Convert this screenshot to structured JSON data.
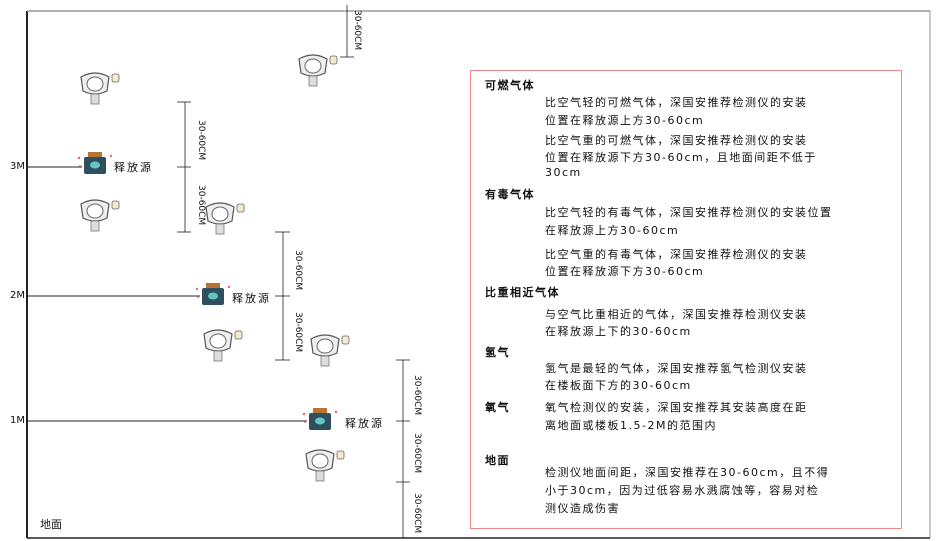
{
  "levels": {
    "m3": "3M",
    "m2": "2M",
    "m1": "1M",
    "ground": "地面"
  },
  "source_label": "释放源",
  "dimension_label": "30-60CM",
  "panel": {
    "combustible": {
      "title": "可燃气体",
      "lighter": [
        "比空气轻的可燃气体，深国安推荐检测仪的安装",
        "位置在释放源上方30-60cm"
      ],
      "heavier": [
        "比空气重的可燃气体，深国安推荐检测仪的安装",
        "位置在释放源下方30-60cm，且地面间距不低于",
        "30cm"
      ]
    },
    "toxic": {
      "title": "有毒气体",
      "lighter": [
        "比空气轻的有毒气体，深国安推荐检测仪的安装位置",
        "在释放源上方30-60cm"
      ],
      "heavier": [
        "比空气重的有毒气体，深国安推荐检测仪的安装",
        "位置在释放源下方30-60cm"
      ]
    },
    "similar": {
      "title": "比重相近气体",
      "text": [
        "与空气比重相近的气体，深国安推荐检测仪安装",
        "在释放源上下的30-60cm"
      ]
    },
    "hydrogen": {
      "title": "氢气",
      "text": [
        "氢气是最轻的气体，深国安推荐氢气检测仪安装",
        "在楼板面下方的30-60cm"
      ]
    },
    "oxygen": {
      "title": "氧气",
      "text": [
        "氧气检测仪的安装，深国安推荐其安装高度在距",
        "离地面或楼板1.5-2M的范围内"
      ]
    },
    "ground": {
      "title": "地面",
      "text": [
        "检测仪地面间距，深国安推荐在30-60cm，且不得",
        "小于30cm，因为过低容易水溅腐蚀等，容易对检",
        "测仪造成伤害"
      ]
    }
  },
  "colors": {
    "panel_border": "#e88888",
    "source_body": "#2f4f5f",
    "source_cap": "#b87333"
  }
}
